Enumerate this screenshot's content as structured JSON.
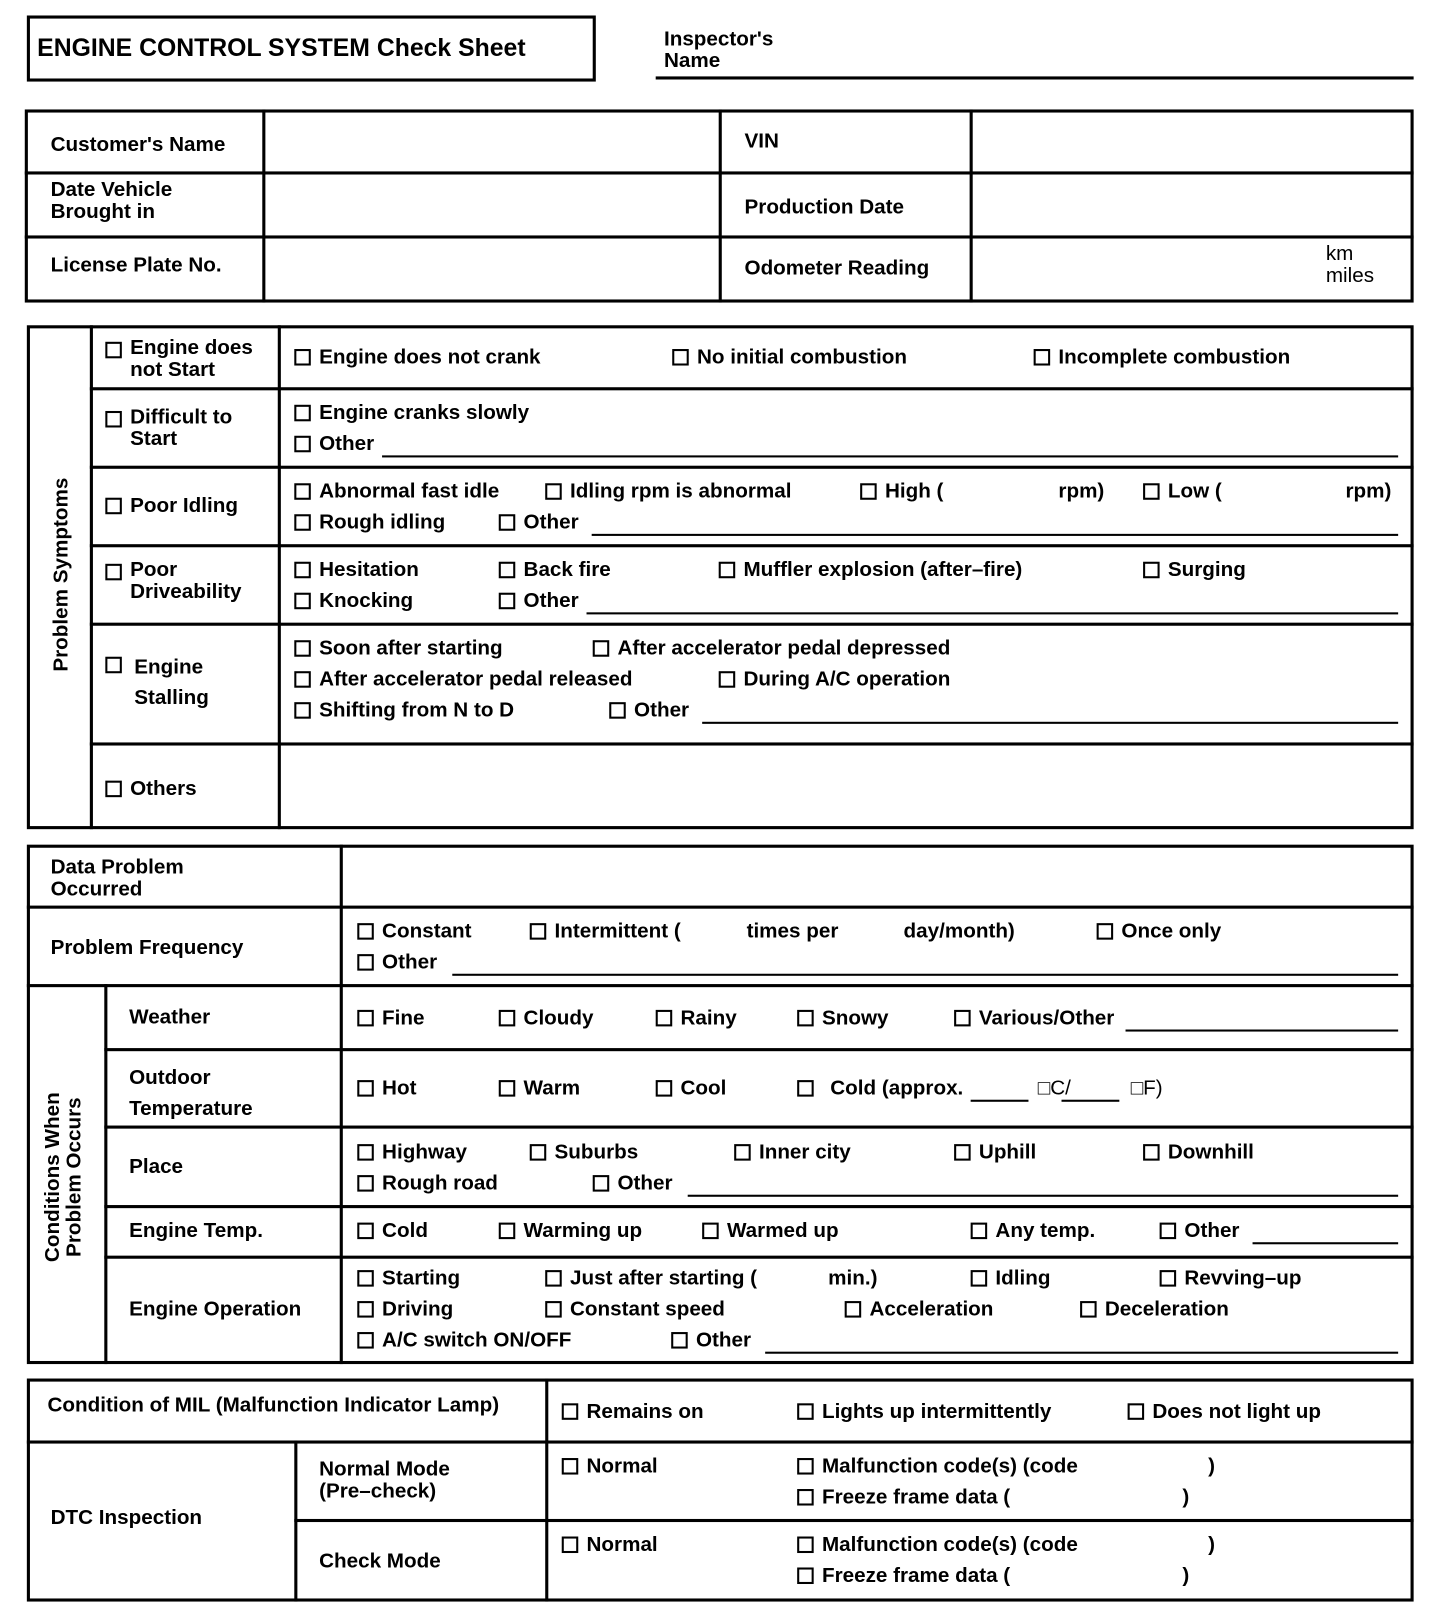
{
  "header": {
    "title": "ENGINE CONTROL SYSTEM Check Sheet",
    "inspector_label": "Inspector's\nName"
  },
  "vehicle": {
    "customer": "Customer's Name",
    "vin": "VIN",
    "date_in": "Date Vehicle\nBrought in",
    "production": "Production Date",
    "plate": "License Plate No.",
    "odometer": "Odometer Reading",
    "km": "km",
    "miles": "miles"
  },
  "symptoms": {
    "title": "Problem Symptoms",
    "no_start": {
      "label": "Engine does\nnot Start",
      "o": [
        "Engine does not crank",
        "No initial combustion",
        "Incomplete combustion"
      ]
    },
    "difficult": {
      "label": "Difficult to\nStart",
      "o": [
        "Engine cranks slowly",
        "Other"
      ]
    },
    "idling": {
      "label": "Poor Idling",
      "o": [
        "Abnormal fast idle",
        "Idling rpm is abnormal",
        "High (",
        "rpm)",
        "Low (",
        "rpm)",
        "Rough idling",
        "Other"
      ]
    },
    "drive": {
      "label": "Poor\nDriveability",
      "o": [
        "Hesitation",
        "Back fire",
        "Muffler explosion (after–fire)",
        "Surging",
        "Knocking",
        "Other"
      ]
    },
    "stall": {
      "label1": "Engine",
      "label2": "Stalling",
      "o": [
        "Soon after starting",
        "After accelerator pedal depressed",
        "After accelerator pedal released",
        "During A/C operation",
        "Shifting from N to D",
        "Other"
      ]
    },
    "others": {
      "label": "Others"
    }
  },
  "conditions": {
    "data_occurred": "Data Problem\nOccurred",
    "frequency": {
      "label": "Problem Frequency",
      "o": [
        "Constant",
        "Intermittent (",
        "times per",
        "day/month)",
        "Once only",
        "Other"
      ]
    },
    "group_title": "Conditions When\nProblem Occurs",
    "weather": {
      "label": "Weather",
      "o": [
        "Fine",
        "Cloudy",
        "Rainy",
        "Snowy",
        "Various/Other"
      ]
    },
    "outdoor": {
      "label": "Outdoor\nTemperature",
      "o": [
        "Hot",
        "Warm",
        "Cool",
        " Cold (approx.",
        "□C/",
        "□F)"
      ]
    },
    "place": {
      "label": "Place",
      "o": [
        "Highway",
        "Suburbs",
        "Inner city",
        "Uphill",
        "Downhill",
        "Rough road",
        "Other"
      ]
    },
    "engine_temp": {
      "label": "Engine Temp.",
      "o": [
        "Cold",
        "Warming up",
        "Warmed up",
        "Any temp.",
        "Other"
      ]
    },
    "operation": {
      "label": "Engine Operation",
      "o": [
        "Starting",
        "Just after starting (",
        "min.)",
        "Idling",
        "Revving–up",
        "Driving",
        "Constant speed",
        "Acceleration",
        "Deceleration",
        "A/C switch ON/OFF",
        "Other"
      ]
    }
  },
  "mil": {
    "label": "Condition of MIL (Malfunction Indicator Lamp)",
    "o": [
      "Remains on",
      "Lights up intermittently",
      "Does not light up"
    ]
  },
  "dtc": {
    "label": "DTC Inspection",
    "normal_mode": "Normal Mode\n(Pre–check)",
    "check_mode": "Check Mode",
    "o": [
      "Normal",
      "Malfunction code(s) (code",
      ")",
      "Freeze frame data (",
      ")"
    ]
  }
}
